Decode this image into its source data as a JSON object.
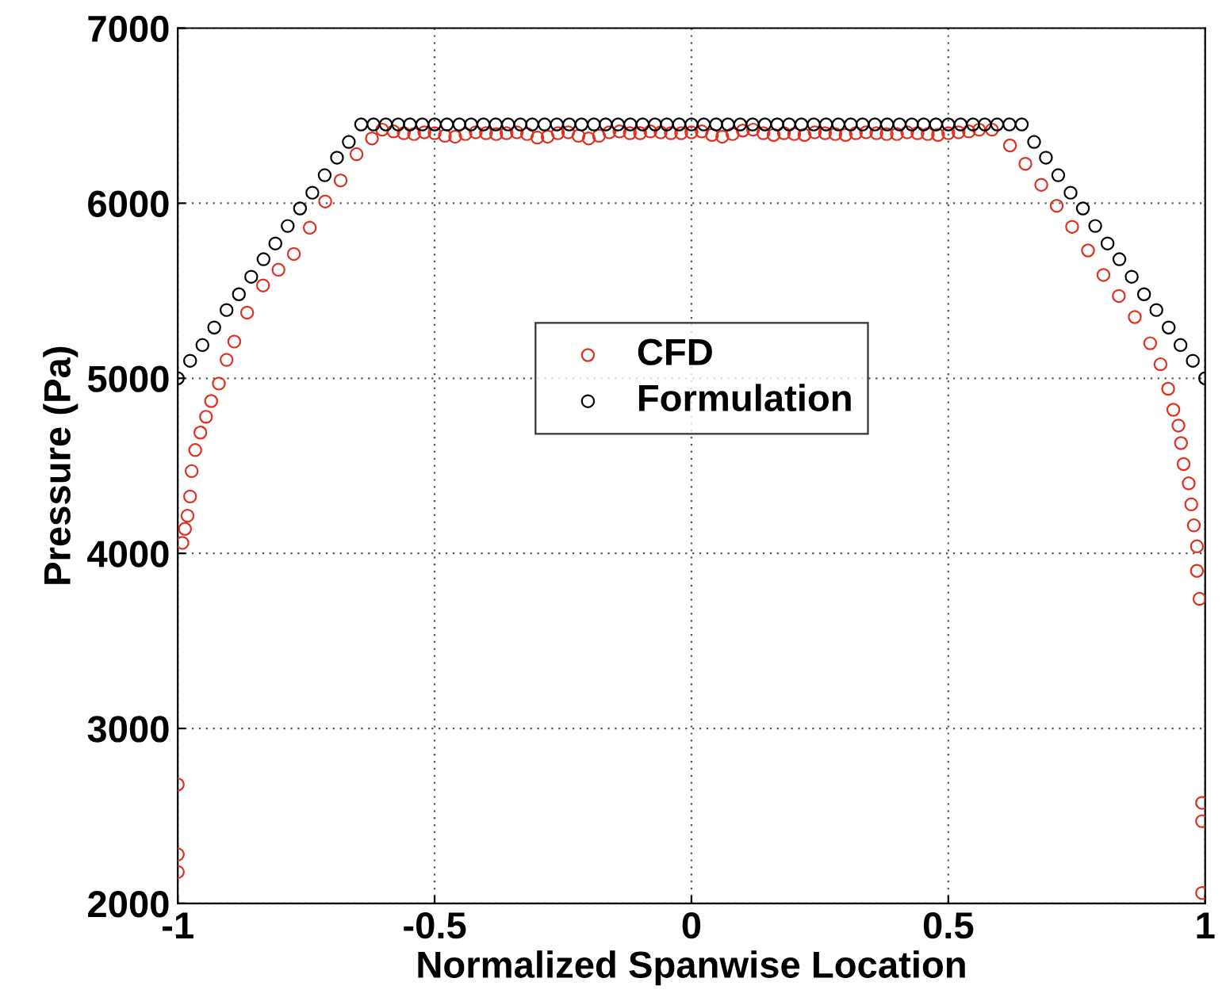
{
  "chart_data": {
    "type": "scatter",
    "xlabel": "Normalized Spanwise Location",
    "ylabel": "Pressure (Pa)",
    "xlim": [
      -1,
      1
    ],
    "ylim": [
      2000,
      7000
    ],
    "xticks": [
      -1,
      -0.5,
      0,
      0.5,
      1
    ],
    "yticks": [
      2000,
      3000,
      4000,
      5000,
      6000,
      7000
    ],
    "grid": true,
    "legend": "center",
    "marker": "circle",
    "series": [
      {
        "name": "CFD",
        "color": "#e03020",
        "x": [
          -1.0,
          -1.0,
          -1.0,
          -0.991,
          -0.986,
          -0.981,
          -0.976,
          -0.973,
          -0.966,
          -0.956,
          -0.945,
          -0.935,
          -0.92,
          -0.905,
          -0.89,
          -0.865,
          -0.834,
          -0.804,
          -0.774,
          -0.743,
          -0.713,
          -0.683,
          -0.652,
          -0.622,
          -0.602,
          -0.58,
          -0.56,
          -0.54,
          -0.52,
          -0.5,
          -0.48,
          -0.46,
          -0.44,
          -0.42,
          -0.4,
          -0.38,
          -0.36,
          -0.34,
          -0.32,
          -0.3,
          -0.28,
          -0.26,
          -0.24,
          -0.22,
          -0.2,
          -0.18,
          -0.16,
          -0.14,
          -0.12,
          -0.1,
          -0.08,
          -0.06,
          -0.04,
          -0.02,
          0,
          0.02,
          0.04,
          0.06,
          0.08,
          0.1,
          0.12,
          0.14,
          0.16,
          0.18,
          0.2,
          0.22,
          0.24,
          0.26,
          0.28,
          0.3,
          0.32,
          0.34,
          0.36,
          0.38,
          0.4,
          0.42,
          0.44,
          0.46,
          0.48,
          0.5,
          0.52,
          0.54,
          0.56,
          0.585,
          0.62,
          0.65,
          0.681,
          0.711,
          0.741,
          0.772,
          0.802,
          0.832,
          0.863,
          0.893,
          0.913,
          0.928,
          0.938,
          0.948,
          0.953,
          0.958,
          0.968,
          0.973,
          0.978,
          0.984,
          0.984,
          0.989,
          0.994,
          0.994,
          0.994
        ],
        "values": [
          2680,
          2280,
          2180,
          4060,
          4140,
          4215,
          4325,
          4470,
          4590,
          4690,
          4780,
          4870,
          4970,
          5105,
          5210,
          5375,
          5530,
          5620,
          5710,
          5860,
          6010,
          6130,
          6280,
          6370,
          6420,
          6410,
          6400,
          6395,
          6405,
          6400,
          6385,
          6380,
          6395,
          6405,
          6400,
          6395,
          6400,
          6405,
          6395,
          6375,
          6380,
          6400,
          6405,
          6385,
          6370,
          6385,
          6405,
          6410,
          6400,
          6400,
          6410,
          6405,
          6400,
          6400,
          6405,
          6410,
          6390,
          6380,
          6395,
          6415,
          6420,
          6400,
          6390,
          6400,
          6395,
          6390,
          6405,
          6400,
          6395,
          6390,
          6400,
          6405,
          6400,
          6395,
          6395,
          6405,
          6400,
          6395,
          6390,
          6400,
          6405,
          6410,
          6420,
          6420,
          6330,
          6225,
          6105,
          5985,
          5865,
          5730,
          5590,
          5470,
          5350,
          5200,
          5080,
          4940,
          4820,
          4730,
          4630,
          4510,
          4400,
          4280,
          4160,
          4040,
          3900,
          3740,
          2575,
          2470,
          2060
        ]
      },
      {
        "name": "Formulation",
        "color": "#000000",
        "x": [
          -1.0,
          -0.976,
          -0.952,
          -0.929,
          -0.905,
          -0.881,
          -0.857,
          -0.833,
          -0.81,
          -0.786,
          -0.762,
          -0.738,
          -0.714,
          -0.69,
          -0.667,
          -0.643,
          -0.619,
          -0.595,
          -0.571,
          -0.548,
          -0.524,
          -0.5,
          -0.476,
          -0.452,
          -0.429,
          -0.405,
          -0.381,
          -0.357,
          -0.333,
          -0.31,
          -0.286,
          -0.262,
          -0.238,
          -0.214,
          -0.19,
          -0.167,
          -0.143,
          -0.119,
          -0.095,
          -0.071,
          -0.048,
          -0.024,
          0,
          0.024,
          0.048,
          0.071,
          0.095,
          0.119,
          0.143,
          0.167,
          0.19,
          0.214,
          0.238,
          0.262,
          0.286,
          0.31,
          0.333,
          0.357,
          0.381,
          0.405,
          0.429,
          0.452,
          0.476,
          0.5,
          0.524,
          0.548,
          0.571,
          0.595,
          0.619,
          0.643,
          0.667,
          0.69,
          0.714,
          0.738,
          0.762,
          0.786,
          0.81,
          0.833,
          0.857,
          0.881,
          0.905,
          0.929,
          0.952,
          0.976,
          1.0
        ],
        "values": [
          5000,
          5100,
          5190,
          5290,
          5390,
          5480,
          5580,
          5680,
          5770,
          5870,
          5970,
          6060,
          6160,
          6260,
          6350,
          6450,
          6450,
          6450,
          6450,
          6450,
          6450,
          6450,
          6450,
          6450,
          6450,
          6450,
          6450,
          6450,
          6450,
          6450,
          6450,
          6450,
          6450,
          6450,
          6450,
          6450,
          6450,
          6450,
          6450,
          6450,
          6450,
          6450,
          6450,
          6450,
          6450,
          6450,
          6450,
          6450,
          6450,
          6450,
          6450,
          6450,
          6450,
          6450,
          6450,
          6450,
          6450,
          6450,
          6450,
          6450,
          6450,
          6450,
          6450,
          6450,
          6450,
          6450,
          6450,
          6450,
          6450,
          6450,
          6350,
          6260,
          6160,
          6060,
          5970,
          5870,
          5770,
          5680,
          5580,
          5480,
          5390,
          5290,
          5190,
          5100,
          5000
        ]
      }
    ]
  }
}
